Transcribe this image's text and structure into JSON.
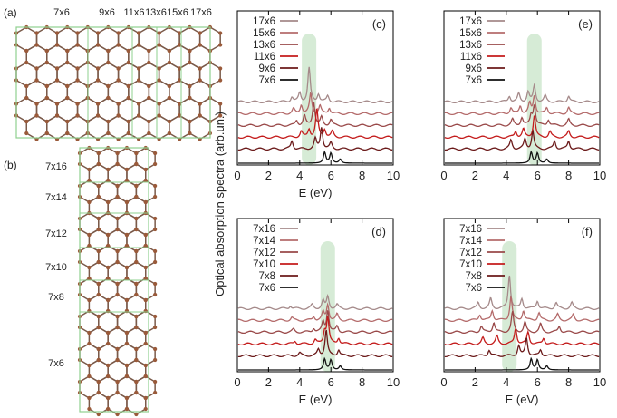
{
  "figure": {
    "panel_labels": {
      "a": "(a)",
      "b": "(b)"
    },
    "ribbon_labels_a": [
      "7x6",
      "9x6",
      "11x6",
      "13x6",
      "15x6",
      "17x6"
    ],
    "ribbon_labels_b": [
      "7x16",
      "7x14",
      "7x12",
      "7x10",
      "7x8",
      "7x6"
    ],
    "ylabel": "Optical absorption spectra (arb.un.)",
    "colors": {
      "atom": "#9a5a3a",
      "bond": "#7a5a4a",
      "box": "#8fd08f",
      "highlight": "#cfe8cf"
    }
  },
  "chart_data": [
    {
      "type": "line",
      "panel": "(c)",
      "xlabel": "E (eV)",
      "xlim": [
        0,
        10
      ],
      "xticks": [
        "0",
        "2",
        "4",
        "6",
        "8",
        "10"
      ],
      "highlight_x": 4.6,
      "legend_placement": "top-left",
      "series": [
        {
          "name": "17x6",
          "color": "#a58a8a",
          "peaks": [
            [
              3.5,
              0.25
            ],
            [
              4.0,
              0.45
            ],
            [
              4.6,
              1.7
            ],
            [
              5.2,
              0.4
            ],
            [
              5.8,
              0.3
            ]
          ]
        },
        {
          "name": "15x6",
          "color": "#b46b6b",
          "peaks": [
            [
              3.6,
              0.25
            ],
            [
              4.1,
              0.45
            ],
            [
              4.7,
              1.0
            ],
            [
              5.3,
              0.4
            ],
            [
              5.9,
              0.3
            ]
          ]
        },
        {
          "name": "13x6",
          "color": "#9a4a4a",
          "peaks": [
            [
              3.8,
              0.25
            ],
            [
              4.3,
              0.5
            ],
            [
              4.9,
              1.2
            ],
            [
              5.4,
              0.4
            ],
            [
              6.0,
              0.3
            ]
          ]
        },
        {
          "name": "11x6",
          "color": "#c41c1c",
          "peaks": [
            [
              4.1,
              0.3
            ],
            [
              4.6,
              0.4
            ],
            [
              5.1,
              1.4
            ],
            [
              5.6,
              0.4
            ],
            [
              6.1,
              0.3
            ]
          ]
        },
        {
          "name": "9x6",
          "color": "#6b1a1a",
          "peaks": [
            [
              3.5,
              0.4
            ],
            [
              5.0,
              0.5
            ],
            [
              5.4,
              1.1
            ],
            [
              6.0,
              0.3
            ]
          ]
        },
        {
          "name": "7x6",
          "color": "#111111",
          "peaks": [
            [
              5.6,
              0.55
            ],
            [
              6.0,
              0.5
            ],
            [
              6.6,
              0.2
            ]
          ]
        }
      ]
    },
    {
      "type": "line",
      "panel": "(e)",
      "xlabel": "",
      "xlim": [
        0,
        10
      ],
      "xticks": [
        "0",
        "2",
        "4",
        "6",
        "8",
        "10"
      ],
      "highlight_x": 5.8,
      "legend_placement": "top-left",
      "series": [
        {
          "name": "17x6",
          "color": "#a58a8a",
          "peaks": [
            [
              4.2,
              0.3
            ],
            [
              4.8,
              0.4
            ],
            [
              5.4,
              0.5
            ],
            [
              5.8,
              0.8
            ],
            [
              6.5,
              0.3
            ],
            [
              8.0,
              0.3
            ]
          ]
        },
        {
          "name": "15x6",
          "color": "#b46b6b",
          "peaks": [
            [
              4.3,
              0.3
            ],
            [
              4.9,
              0.4
            ],
            [
              5.5,
              0.5
            ],
            [
              5.8,
              0.9
            ],
            [
              6.6,
              0.3
            ],
            [
              8.0,
              0.3
            ]
          ]
        },
        {
          "name": "13x6",
          "color": "#9a4a4a",
          "peaks": [
            [
              4.4,
              0.3
            ],
            [
              5.0,
              0.4
            ],
            [
              5.6,
              0.5
            ],
            [
              5.8,
              1.0
            ],
            [
              6.7,
              0.3
            ],
            [
              8.0,
              0.3
            ]
          ]
        },
        {
          "name": "11x6",
          "color": "#c41c1c",
          "peaks": [
            [
              4.6,
              0.3
            ],
            [
              5.1,
              0.4
            ],
            [
              5.8,
              1.1
            ],
            [
              6.8,
              0.3
            ],
            [
              8.0,
              0.3
            ]
          ]
        },
        {
          "name": "9x6",
          "color": "#6b1a1a",
          "peaks": [
            [
              4.3,
              0.45
            ],
            [
              5.2,
              0.5
            ],
            [
              5.7,
              0.9
            ],
            [
              7.1,
              0.4
            ],
            [
              8.0,
              0.4
            ]
          ]
        },
        {
          "name": "7x6",
          "color": "#111111",
          "peaks": [
            [
              5.6,
              0.55
            ],
            [
              6.0,
              0.5
            ],
            [
              6.6,
              0.2
            ]
          ]
        }
      ]
    },
    {
      "type": "line",
      "panel": "(d)",
      "xlabel": "E (eV)",
      "xlim": [
        0,
        10
      ],
      "xticks": [
        "0",
        "2",
        "4",
        "6",
        "8",
        "10"
      ],
      "highlight_x": 5.8,
      "legend_placement": "top-left",
      "series": [
        {
          "name": "7x16",
          "color": "#a58a8a",
          "peaks": [
            [
              3.4,
              0.15
            ],
            [
              4.8,
              0.2
            ],
            [
              5.5,
              0.4
            ],
            [
              5.8,
              0.6
            ],
            [
              6.4,
              0.2
            ]
          ]
        },
        {
          "name": "7x14",
          "color": "#b46b6b",
          "peaks": [
            [
              3.5,
              0.15
            ],
            [
              4.9,
              0.2
            ],
            [
              5.5,
              0.4
            ],
            [
              5.8,
              0.8
            ],
            [
              6.4,
              0.3
            ]
          ]
        },
        {
          "name": "7x12",
          "color": "#9a4a4a",
          "peaks": [
            [
              3.6,
              0.15
            ],
            [
              4.9,
              0.2
            ],
            [
              5.5,
              0.5
            ],
            [
              5.8,
              1.1
            ],
            [
              6.4,
              0.3
            ]
          ]
        },
        {
          "name": "7x10",
          "color": "#c41c1c",
          "peaks": [
            [
              3.7,
              0.15
            ],
            [
              5.0,
              0.2
            ],
            [
              5.6,
              0.6
            ],
            [
              5.8,
              1.3
            ],
            [
              6.5,
              0.3
            ]
          ]
        },
        {
          "name": "7x8",
          "color": "#6b1a1a",
          "peaks": [
            [
              4.0,
              0.15
            ],
            [
              5.2,
              0.3
            ],
            [
              5.7,
              1.3
            ],
            [
              6.5,
              0.3
            ]
          ]
        },
        {
          "name": "7x6",
          "color": "#111111",
          "peaks": [
            [
              5.6,
              0.55
            ],
            [
              6.0,
              0.5
            ],
            [
              6.6,
              0.2
            ]
          ]
        }
      ]
    },
    {
      "type": "line",
      "panel": "(f)",
      "xlabel": "E (eV)",
      "xlim": [
        0,
        10
      ],
      "xticks": [
        "0",
        "2",
        "4",
        "6",
        "8",
        "10"
      ],
      "highlight_x": 4.2,
      "legend_placement": "top-left",
      "series": [
        {
          "name": "7x16",
          "color": "#a58a8a",
          "peaks": [
            [
              2.2,
              0.3
            ],
            [
              3.0,
              0.5
            ],
            [
              4.2,
              1.7
            ],
            [
              5.0,
              0.5
            ],
            [
              6.0,
              0.4
            ],
            [
              7.2,
              0.3
            ],
            [
              8.2,
              0.3
            ]
          ]
        },
        {
          "name": "7x14",
          "color": "#b46b6b",
          "peaks": [
            [
              2.3,
              0.3
            ],
            [
              3.1,
              0.5
            ],
            [
              4.3,
              1.2
            ],
            [
              5.1,
              0.5
            ],
            [
              6.1,
              0.4
            ],
            [
              7.3,
              0.3
            ],
            [
              8.3,
              0.3
            ]
          ]
        },
        {
          "name": "7x12",
          "color": "#9a4a4a",
          "peaks": [
            [
              2.4,
              0.3
            ],
            [
              3.2,
              0.5
            ],
            [
              4.4,
              1.0
            ],
            [
              5.2,
              0.5
            ],
            [
              6.2,
              0.4
            ],
            [
              7.4,
              0.3
            ]
          ]
        },
        {
          "name": "7x10",
          "color": "#c41c1c",
          "peaks": [
            [
              2.5,
              0.3
            ],
            [
              3.4,
              0.4
            ],
            [
              4.6,
              0.8
            ],
            [
              5.4,
              0.6
            ],
            [
              6.4,
              0.3
            ]
          ]
        },
        {
          "name": "7x8",
          "color": "#6b1a1a",
          "peaks": [
            [
              2.9,
              0.3
            ],
            [
              4.8,
              0.5
            ],
            [
              5.3,
              0.9
            ],
            [
              6.2,
              0.3
            ]
          ]
        },
        {
          "name": "7x6",
          "color": "#111111",
          "peaks": [
            [
              5.6,
              0.55
            ],
            [
              6.0,
              0.5
            ],
            [
              6.6,
              0.2
            ]
          ]
        }
      ]
    }
  ]
}
